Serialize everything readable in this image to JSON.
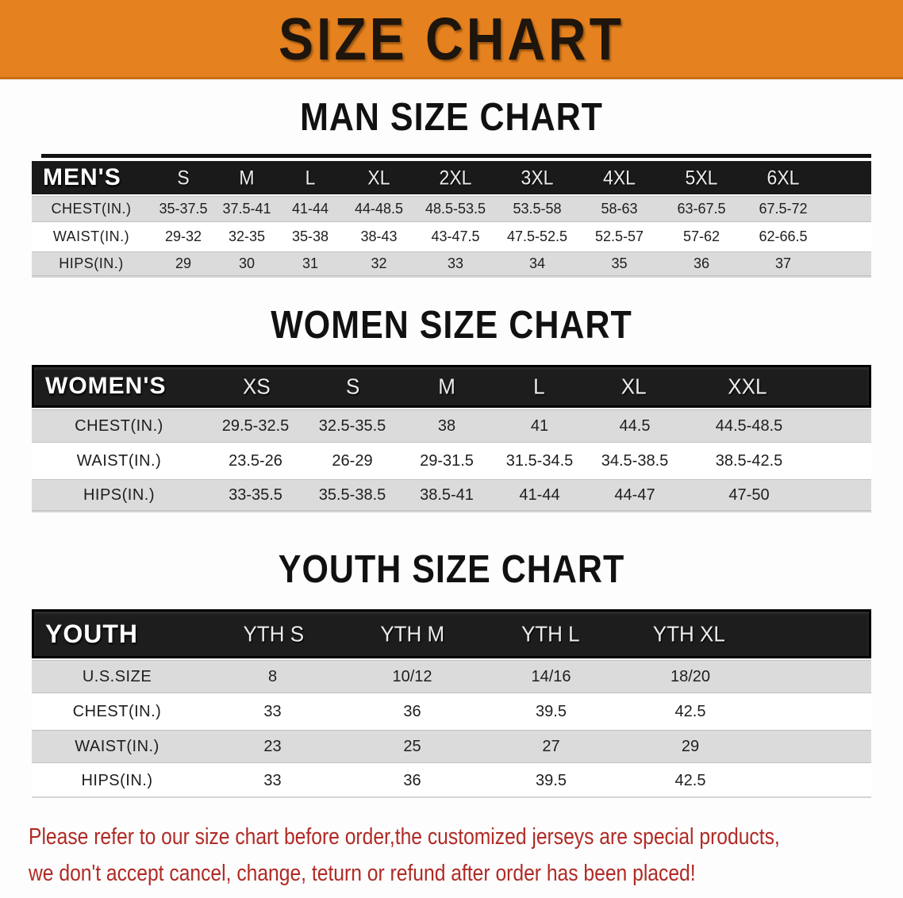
{
  "banner": {
    "title": "SIZE CHART"
  },
  "colors": {
    "banner_orange": "#E5811E",
    "header_black": "#1A1A1A",
    "row_gray": "#DBDBDB",
    "note_red": "#B02A25"
  },
  "chart_data": [
    {
      "type": "table",
      "title": "MAN SIZE CHART",
      "corner_label": "MEN'S",
      "columns": [
        "S",
        "M",
        "L",
        "XL",
        "2XL",
        "3XL",
        "4XL",
        "5XL",
        "6XL"
      ],
      "rows": [
        {
          "label": "CHEST(IN.)",
          "values": [
            "35-37.5",
            "37.5-41",
            "41-44",
            "44-48.5",
            "48.5-53.5",
            "53.5-58",
            "58-63",
            "63-67.5",
            "67.5-72"
          ]
        },
        {
          "label": "WAIST(IN.)",
          "values": [
            "29-32",
            "32-35",
            "35-38",
            "38-43",
            "43-47.5",
            "47.5-52.5",
            "52.5-57",
            "57-62",
            "62-66.5"
          ]
        },
        {
          "label": "HIPS(IN.)",
          "values": [
            "29",
            "30",
            "31",
            "32",
            "33",
            "34",
            "35",
            "36",
            "37"
          ]
        }
      ]
    },
    {
      "type": "table",
      "title": "WOMEN SIZE CHART",
      "corner_label": "WOMEN'S",
      "columns": [
        "XS",
        "S",
        "M",
        "L",
        "XL",
        "XXL"
      ],
      "rows": [
        {
          "label": "CHEST(IN.)",
          "values": [
            "29.5-32.5",
            "32.5-35.5",
            "38",
            "41",
            "44.5",
            "44.5-48.5"
          ]
        },
        {
          "label": "WAIST(IN.)",
          "values": [
            "23.5-26",
            "26-29",
            "29-31.5",
            "31.5-34.5",
            "34.5-38.5",
            "38.5-42.5"
          ]
        },
        {
          "label": "HIPS(IN.)",
          "values": [
            "33-35.5",
            "35.5-38.5",
            "38.5-41",
            "41-44",
            "44-47",
            "47-50"
          ]
        }
      ]
    },
    {
      "type": "table",
      "title": "YOUTH SIZE CHART",
      "corner_label": "YOUTH",
      "columns": [
        "YTH S",
        "YTH M",
        "YTH L",
        "YTH XL"
      ],
      "rows": [
        {
          "label": "U.S.SIZE",
          "values": [
            "8",
            "10/12",
            "14/16",
            "18/20"
          ]
        },
        {
          "label": "CHEST(IN.)",
          "values": [
            "33",
            "36",
            "39.5",
            "42.5"
          ]
        },
        {
          "label": "WAIST(IN.)",
          "values": [
            "23",
            "25",
            "27",
            "29"
          ]
        },
        {
          "label": "HIPS(IN.)",
          "values": [
            "33",
            "36",
            "39.5",
            "42.5"
          ]
        }
      ]
    }
  ],
  "note": {
    "line1": "Please refer to our size chart before order,the customized jerseys are special products,",
    "line2": "we don't accept cancel, change, teturn or refund after order has been placed!"
  }
}
